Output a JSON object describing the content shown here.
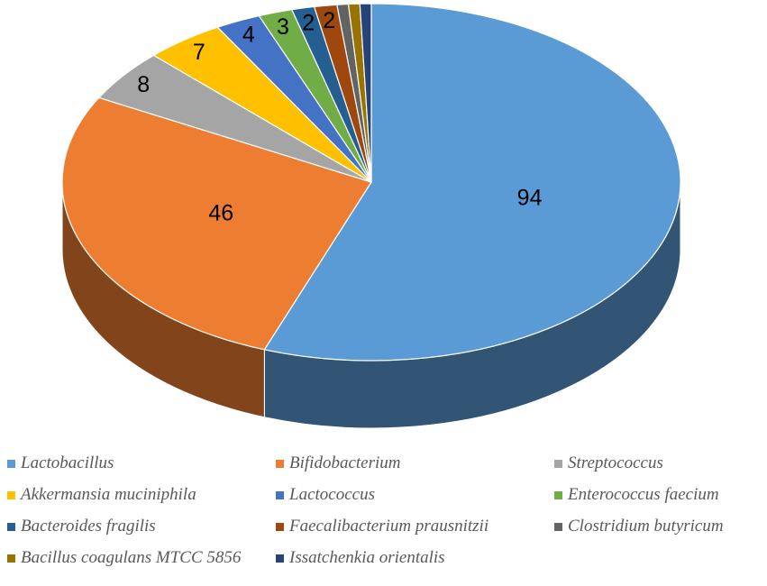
{
  "chart_data": {
    "type": "pie",
    "style": "3d",
    "title": "",
    "categories": [
      "Lactobacillus",
      "Bifidobacterium",
      "Streptococcus",
      "Akkermansia muciniphila",
      "Lactococcus",
      "Enterococcus faecium",
      "Bacteroides fragilis",
      "Faecalibacterium prausnitzii",
      "Clostridium butyricum",
      "Bacillus coagulans MTCC 5856",
      "Issatchenkia orientalis"
    ],
    "values": [
      94,
      46,
      8,
      7,
      4,
      3,
      2,
      2,
      1,
      1,
      1
    ],
    "data_labels": [
      "94",
      "46",
      "8",
      "7",
      "4",
      "3",
      "2",
      "2",
      "",
      "",
      ""
    ],
    "colors": [
      "#5b9bd5",
      "#ed7d31",
      "#a5a5a5",
      "#ffc000",
      "#4472c4",
      "#70ad47",
      "#255e91",
      "#9e480e",
      "#636363",
      "#997300",
      "#264478"
    ],
    "legend_position": "bottom"
  }
}
